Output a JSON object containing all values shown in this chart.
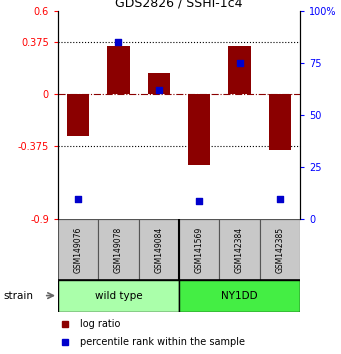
{
  "title": "GDS2826 / SSHI-1c4",
  "samples": [
    "GSM149076",
    "GSM149078",
    "GSM149084",
    "GSM141569",
    "GSM142384",
    "GSM142385"
  ],
  "log_ratios": [
    -0.3,
    0.345,
    0.155,
    -0.51,
    0.345,
    -0.4
  ],
  "percentile_ranks": [
    10,
    85,
    62,
    9,
    75,
    10
  ],
  "strain_groups": [
    {
      "label": "wild type",
      "start": 0,
      "end": 3,
      "color": "#AAFFAA"
    },
    {
      "label": "NY1DD",
      "start": 3,
      "end": 6,
      "color": "#44EE44"
    }
  ],
  "bar_color": "#8B0000",
  "dot_color": "#0000CC",
  "left_ylim": [
    -0.9,
    0.6
  ],
  "right_ylim": [
    0,
    100
  ],
  "left_yticks": [
    -0.9,
    -0.375,
    0,
    0.375,
    0.6
  ],
  "left_yticklabels": [
    "-0.9",
    "-0.375",
    "0",
    "0.375",
    "0.6"
  ],
  "right_yticks": [
    0,
    25,
    50,
    75,
    100
  ],
  "right_yticklabels": [
    "0",
    "25",
    "50",
    "75",
    "100%"
  ],
  "hline_dotted": [
    0.375,
    -0.375
  ],
  "hline_dashed": 0,
  "bar_width": 0.55,
  "legend_logratio": "log ratio",
  "legend_percentile": "percentile rank within the sample",
  "strain_label": "strain",
  "gsm_bg": "#C8C8C8",
  "background_color": "#ffffff"
}
